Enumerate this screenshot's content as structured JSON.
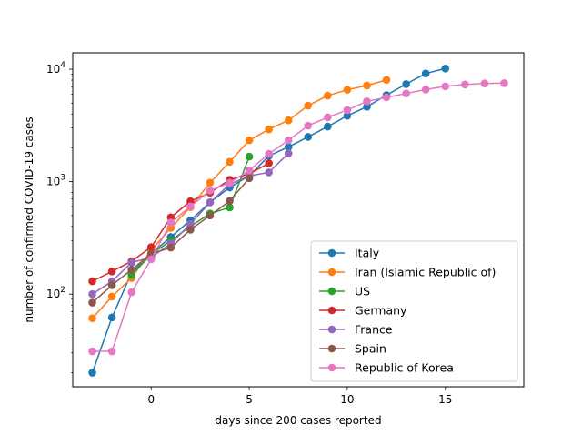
{
  "chart_data": {
    "type": "line",
    "title": "",
    "xlabel": "days since 200 cases reported",
    "ylabel": "number of confirmed COVID-19 cases",
    "xlim": [
      -4,
      19
    ],
    "ylim": [
      15,
      14000
    ],
    "yscale": "log",
    "xticks": [
      0,
      5,
      10,
      15
    ],
    "xtick_labels": [
      "0",
      "5",
      "10",
      "15"
    ],
    "yticks": [
      100,
      1000,
      10000
    ],
    "ytick_labels": [
      {
        "base": "10",
        "exp": "2"
      },
      {
        "base": "10",
        "exp": "3"
      },
      {
        "base": "10",
        "exp": "4"
      }
    ],
    "grid": false,
    "legend_position": "lower-right",
    "series": [
      {
        "name": "Italy",
        "color": "#1f77b4",
        "x": [
          -3,
          -2,
          -1,
          0,
          1,
          2,
          3,
          4,
          5,
          6,
          7,
          8,
          9,
          10,
          11,
          12,
          13,
          14,
          15
        ],
        "y": [
          20,
          62,
          155,
          229,
          322,
          453,
          655,
          888,
          1128,
          1694,
          2036,
          2502,
          3089,
          3858,
          4636,
          5883,
          7375,
          9172,
          10149
        ]
      },
      {
        "name": "Iran (Islamic Republic of)",
        "color": "#ff7f0e",
        "x": [
          -3,
          -2,
          -1,
          0,
          1,
          2,
          3,
          4,
          5,
          6,
          7,
          8,
          9,
          10,
          11,
          12
        ],
        "y": [
          61,
          95,
          139,
          245,
          388,
          593,
          978,
          1501,
          2336,
          2922,
          3513,
          4747,
          5823,
          6566,
          7161,
          8042
        ]
      },
      {
        "name": "US",
        "color": "#2ca02c",
        "x": [
          -1,
          0,
          1,
          2,
          3,
          4,
          5
        ],
        "y": [
          148,
          225,
          300,
          400,
          520,
          590,
          1670
        ]
      },
      {
        "name": "Germany",
        "color": "#d62728",
        "x": [
          -3,
          -2,
          -1,
          0,
          1,
          2,
          3,
          4,
          5,
          6
        ],
        "y": [
          130,
          159,
          196,
          262,
          482,
          670,
          799,
          1040,
          1176,
          1457
        ]
      },
      {
        "name": "France",
        "color": "#9467bd",
        "x": [
          -3,
          -2,
          -1,
          0,
          1,
          2,
          3,
          4,
          5,
          6,
          7
        ],
        "y": [
          100,
          130,
          191,
          212,
          282,
          420,
          653,
          949,
          1126,
          1209,
          1784
        ]
      },
      {
        "name": "Spain",
        "color": "#8c564b",
        "x": [
          -3,
          -2,
          -1,
          0,
          1,
          2,
          3,
          4,
          5
        ],
        "y": [
          84,
          120,
          165,
          228,
          259,
          374,
          500,
          673,
          1073
        ]
      },
      {
        "name": "Republic of Korea",
        "color": "#e377c2",
        "x": [
          -3,
          -2,
          -1,
          0,
          1,
          2,
          3,
          4,
          5,
          6,
          7,
          8,
          9,
          10,
          11,
          12,
          13,
          14,
          15,
          16,
          17,
          18
        ],
        "y": [
          31,
          31,
          104,
          204,
          433,
          602,
          833,
          977,
          1261,
          1766,
          2337,
          3150,
          3736,
          4335,
          5186,
          5621,
          6088,
          6593,
          7041,
          7314,
          7478,
          7513
        ]
      }
    ]
  }
}
